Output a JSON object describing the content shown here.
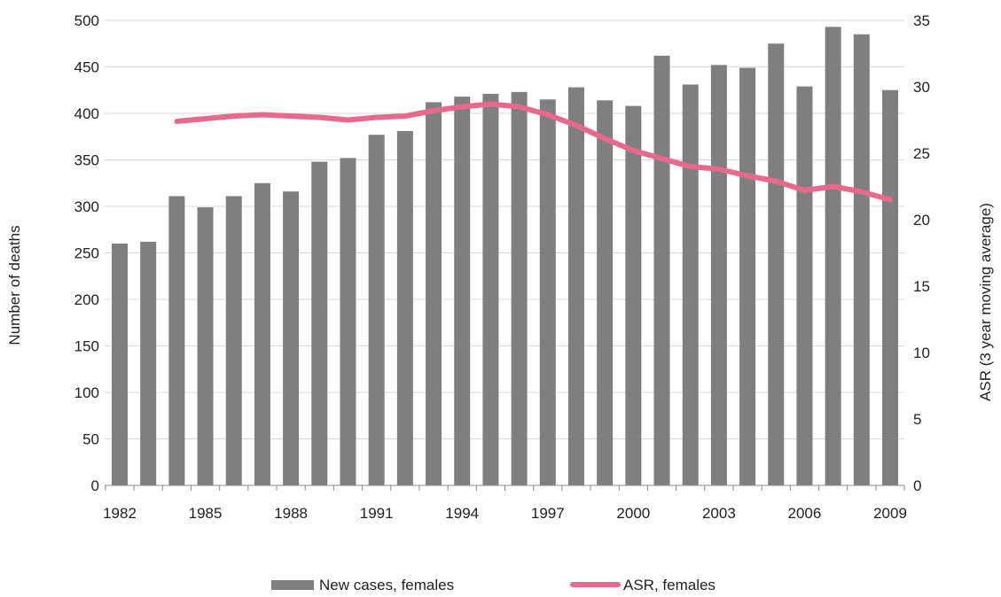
{
  "chart_data": {
    "type": "bar",
    "title": "",
    "x": [
      1982,
      1983,
      1984,
      1985,
      1986,
      1987,
      1988,
      1989,
      1990,
      1991,
      1992,
      1993,
      1994,
      1995,
      1996,
      1997,
      1998,
      1999,
      2000,
      2001,
      2002,
      2003,
      2004,
      2005,
      2006,
      2007,
      2008,
      2009
    ],
    "x_tick_labels": [
      "1982",
      "1985",
      "1988",
      "1991",
      "1994",
      "1997",
      "2000",
      "2003",
      "2006",
      "2009"
    ],
    "ylabel": "Number of deaths",
    "y2label": "ASR (3 year moving average)",
    "ylim": [
      0,
      500
    ],
    "y2lim": [
      0,
      35
    ],
    "y_ticks": [
      "0",
      "50",
      "100",
      "150",
      "200",
      "250",
      "300",
      "350",
      "400",
      "450",
      "500"
    ],
    "y2_ticks": [
      "0",
      "5",
      "10",
      "15",
      "20",
      "25",
      "30",
      "35"
    ],
    "grid": true,
    "legend_position": "bottom",
    "series": [
      {
        "name": "New cases, females",
        "kind": "bar",
        "axis": "left",
        "color": "#7f7f7f",
        "values": [
          260,
          262,
          311,
          299,
          311,
          325,
          316,
          348,
          352,
          377,
          381,
          412,
          418,
          421,
          423,
          415,
          428,
          414,
          408,
          462,
          431,
          452,
          449,
          475,
          429,
          493,
          485,
          425
        ]
      },
      {
        "name": "ASR, females",
        "kind": "line",
        "axis": "right",
        "color": "#e8698e",
        "values": [
          null,
          null,
          27.4,
          27.6,
          27.8,
          27.9,
          27.8,
          27.7,
          27.5,
          27.7,
          27.8,
          28.2,
          28.5,
          28.7,
          28.5,
          27.9,
          27.1,
          26.1,
          25.2,
          24.6,
          24.0,
          23.8,
          23.3,
          22.9,
          22.2,
          22.5,
          22.1,
          21.5
        ]
      }
    ]
  }
}
